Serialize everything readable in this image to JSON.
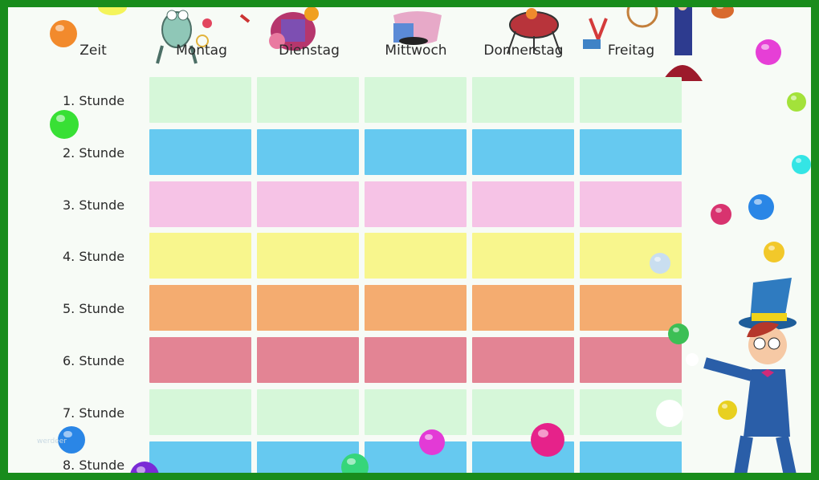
{
  "header": {
    "zeit": "Zeit",
    "days": [
      "Montag",
      "Dienstag",
      "Mittwoch",
      "Donnerstag",
      "Freitag"
    ]
  },
  "rows": [
    {
      "label": "1. Stunde",
      "color": "#d6f7d9"
    },
    {
      "label": "2. Stunde",
      "color": "#66c9f0"
    },
    {
      "label": "3. Stunde",
      "color": "#f6c3e6"
    },
    {
      "label": "4. Stunde",
      "color": "#f8f68d"
    },
    {
      "label": "5. Stunde",
      "color": "#f4ac70"
    },
    {
      "label": "6. Stunde",
      "color": "#e38494"
    },
    {
      "label": "7. Stunde",
      "color": "#d6f7d9"
    },
    {
      "label": "8. Stunde",
      "color": "#66c9f0"
    }
  ],
  "watermark": "werdeer",
  "colors": {
    "frame": "#198c1c",
    "paper": "#f7fbf6"
  }
}
